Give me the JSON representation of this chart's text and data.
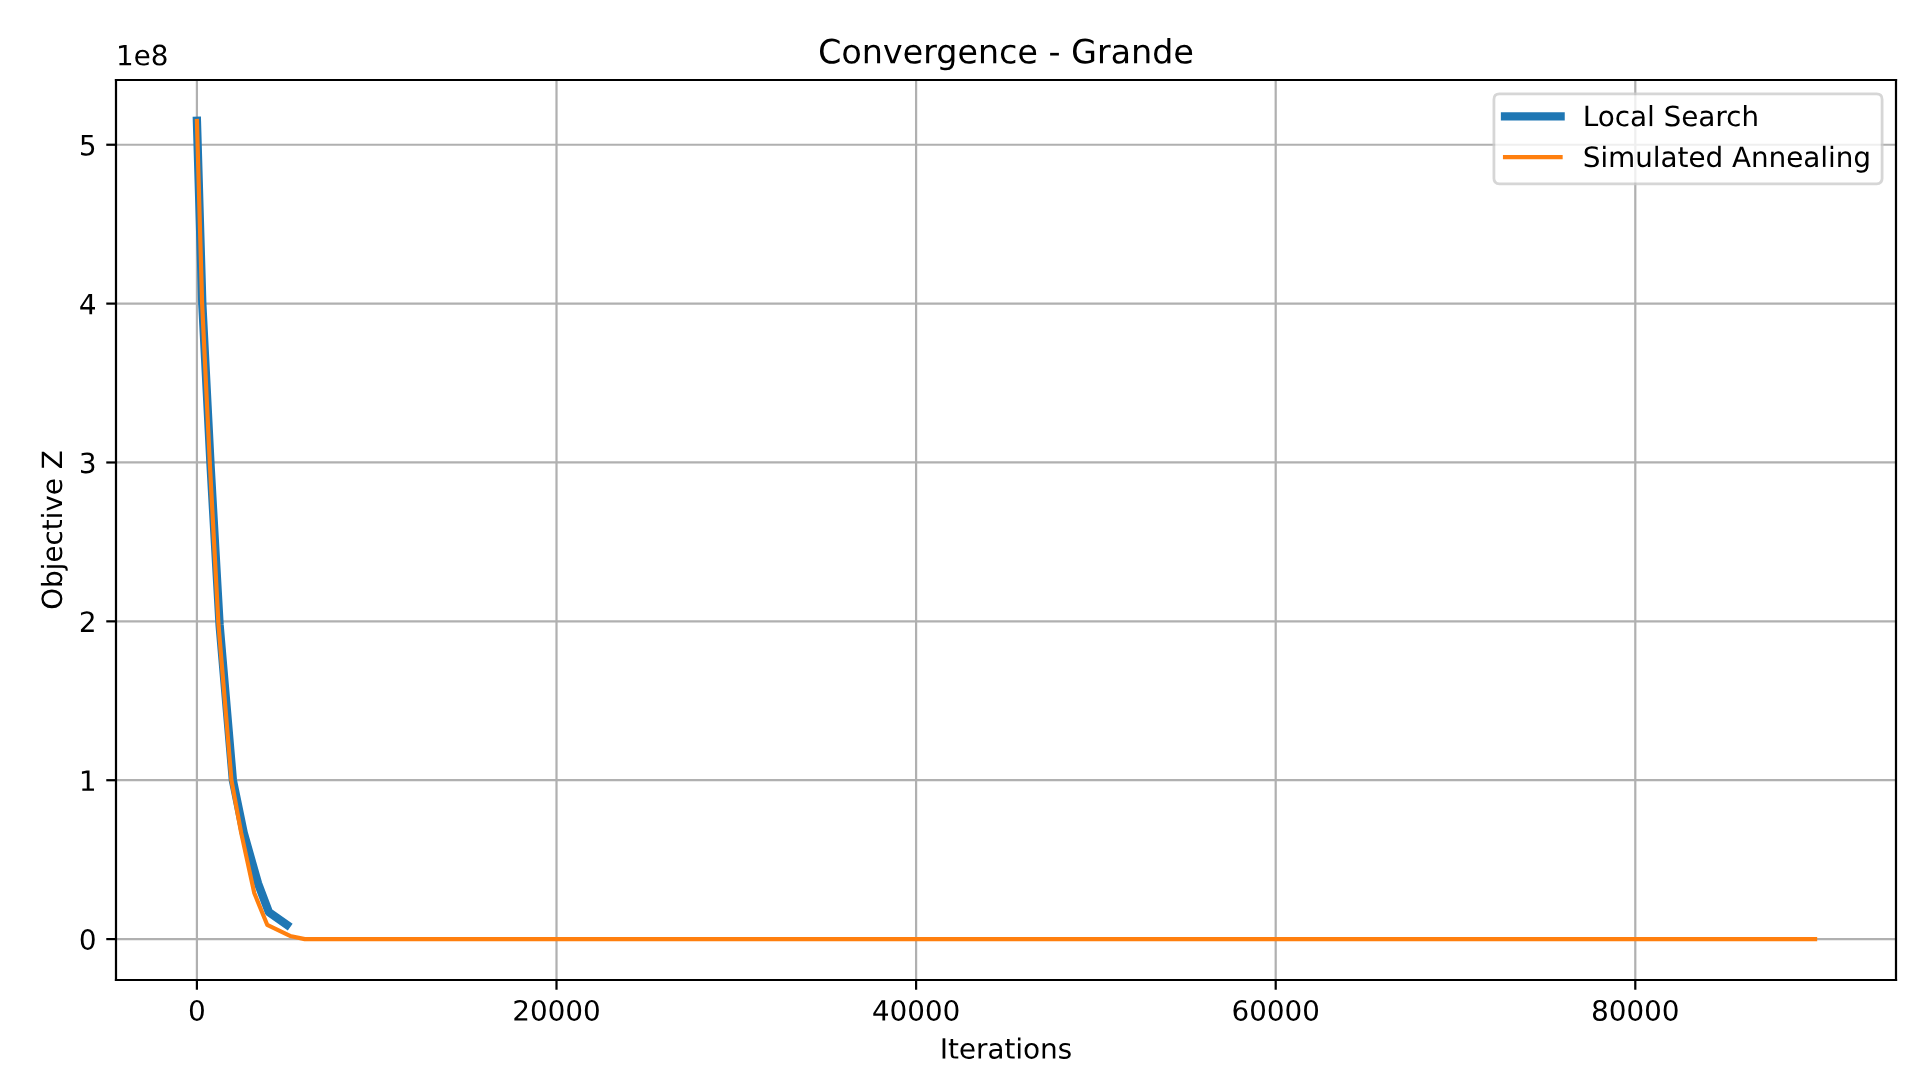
{
  "chart_data": {
    "type": "line",
    "title": "Convergence - Grande",
    "xlabel": "Iterations",
    "ylabel": "Objective Z",
    "annotations": [
      "1e8"
    ],
    "series": [
      {
        "name": "Local Search",
        "color": "#1f77b4",
        "x": [
          0,
          300,
          760,
          1260,
          2000,
          2600,
          3400,
          4000,
          5000
        ],
        "values": [
          5.15,
          4.0,
          2.98,
          1.98,
          1.0,
          0.67,
          0.35,
          0.17,
          0.09
        ]
      },
      {
        "name": "Simulated Annealing",
        "color": "#ff7f0e",
        "x": [
          0,
          290,
          725,
          1200,
          1920,
          2460,
          3190,
          3910,
          5180,
          6000,
          90000
        ],
        "values": [
          5.15,
          4.0,
          2.98,
          1.98,
          1.0,
          0.67,
          0.29,
          0.09,
          0.02,
          0,
          0
        ]
      }
    ],
    "xlim": [
      -4500,
      94500
    ],
    "ylim": [
      -0.2575,
      5.4075
    ],
    "xticks": [
      0,
      20000,
      40000,
      60000,
      80000
    ],
    "yticks": [
      0,
      1,
      2,
      3,
      4,
      5
    ],
    "grid": true,
    "legend": "top right"
  }
}
